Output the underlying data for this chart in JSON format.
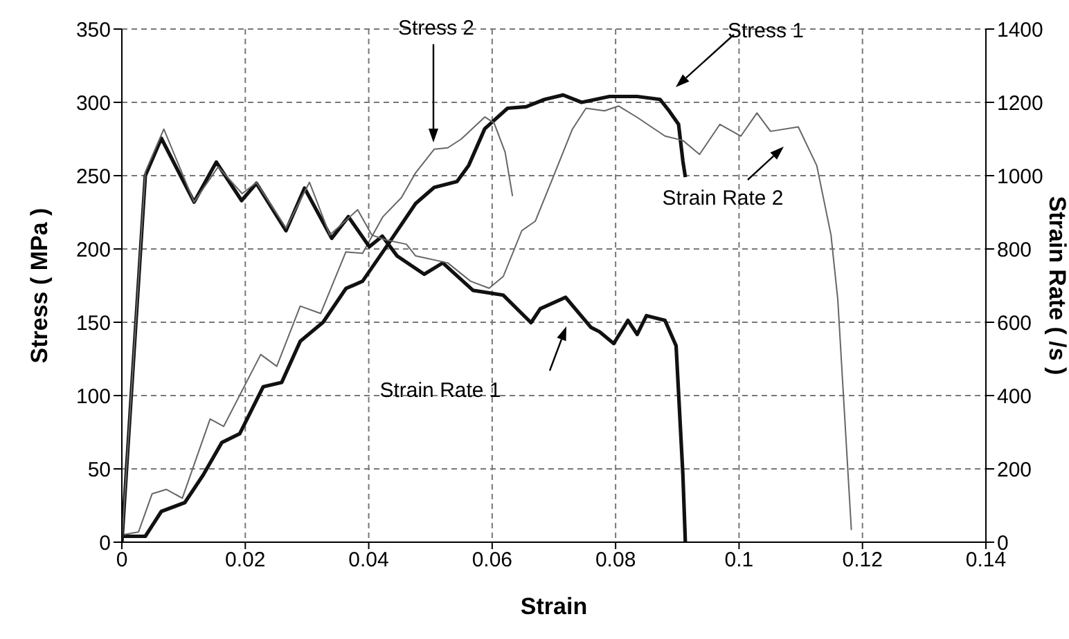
{
  "chart_data": {
    "type": "line",
    "xlabel": "Strain",
    "ylabel": "Stress ( MPa )",
    "y2label": "Strain Rate ( /s )",
    "xlim": [
      0,
      0.14
    ],
    "xticks": [
      0,
      0.02,
      0.04,
      0.06,
      0.08,
      0.1,
      0.12,
      0.14
    ],
    "ylim": [
      0,
      350
    ],
    "yticks": [
      0,
      50,
      100,
      150,
      200,
      250,
      300,
      350
    ],
    "y2lim": [
      0,
      1400
    ],
    "y2ticks": [
      0,
      200,
      400,
      600,
      800,
      1000,
      1200,
      1400
    ],
    "grid": true,
    "legend": false,
    "marker": "none",
    "line_style": "solid",
    "series": [
      {
        "color": "#111111",
        "x": [
          0,
          0.0038,
          0.0064,
          0.0102,
          0.0132,
          0.0162,
          0.0191,
          0.0229,
          0.0259,
          0.0289,
          0.0326,
          0.0363,
          0.039,
          0.0431,
          0.0476,
          0.0506,
          0.0543,
          0.0562,
          0.0588,
          0.0625,
          0.0655,
          0.0685,
          0.0715,
          0.0745,
          0.079,
          0.0835,
          0.0872,
          0.0887,
          0.0902,
          0.0909,
          0.0913
        ],
        "values": [
          4,
          4,
          21,
          27,
          46,
          68,
          74,
          106,
          109,
          137,
          150,
          173,
          178,
          203,
          231,
          242,
          246,
          257,
          282,
          296,
          297,
          302,
          305,
          300,
          304,
          304,
          302,
          294,
          285,
          260,
          249
        ]
      },
      {
        "color": "#666666",
        "x": [
          0,
          0.0027,
          0.0049,
          0.0072,
          0.0098,
          0.0143,
          0.0165,
          0.0225,
          0.0251,
          0.0289,
          0.0322,
          0.0363,
          0.039,
          0.0423,
          0.0453,
          0.0476,
          0.0506,
          0.0528,
          0.055,
          0.0588,
          0.0603,
          0.0621,
          0.0633
        ],
        "values": [
          5,
          7,
          33,
          36,
          30,
          84,
          79,
          128,
          120,
          161,
          156,
          198,
          197,
          222,
          235,
          252,
          268,
          269,
          275,
          290,
          286,
          266,
          236
        ]
      },
      {
        "color": "#111111",
        "axis": "y2",
        "x": [
          0,
          0.0038,
          0.0064,
          0.0117,
          0.0153,
          0.0194,
          0.0218,
          0.0266,
          0.0296,
          0.034,
          0.0367,
          0.0401,
          0.0422,
          0.0446,
          0.049,
          0.052,
          0.0569,
          0.0618,
          0.0663,
          0.0678,
          0.0719,
          0.076,
          0.0774,
          0.0797,
          0.082,
          0.0835,
          0.085,
          0.088,
          0.0898,
          0.0909,
          0.0913
        ],
        "values": [
          0,
          1000,
          1102,
          928,
          1037,
          932,
          979,
          850,
          966,
          829,
          888,
          806,
          835,
          781,
          731,
          762,
          687,
          674,
          599,
          637,
          668,
          586,
          574,
          542,
          605,
          567,
          618,
          605,
          536,
          184,
          0
        ]
      },
      {
        "color": "#666666",
        "axis": "y2",
        "x": [
          0,
          0.0038,
          0.0068,
          0.0117,
          0.0156,
          0.0195,
          0.0218,
          0.0266,
          0.0304,
          0.0337,
          0.0382,
          0.0405,
          0.0427,
          0.0461,
          0.0476,
          0.0528,
          0.0565,
          0.0595,
          0.0618,
          0.0648,
          0.067,
          0.07,
          0.073,
          0.0752,
          0.0782,
          0.0805,
          0.0835,
          0.088,
          0.0909,
          0.0936,
          0.0969,
          0.1003,
          0.1029,
          0.1051,
          0.1096,
          0.1126,
          0.1149,
          0.116,
          0.1171,
          0.1182
        ],
        "values": [
          0,
          1010,
          1127,
          928,
          1024,
          951,
          981,
          857,
          982,
          838,
          907,
          838,
          825,
          813,
          781,
          762,
          712,
          693,
          725,
          850,
          876,
          1001,
          1127,
          1184,
          1177,
          1190,
          1159,
          1108,
          1096,
          1058,
          1140,
          1108,
          1171,
          1121,
          1133,
          1027,
          838,
          662,
          347,
          33
        ]
      }
    ],
    "annotations": [
      "Stress 2",
      "Stress 1",
      "Strain Rate 2",
      "Strain Rate 1"
    ]
  }
}
